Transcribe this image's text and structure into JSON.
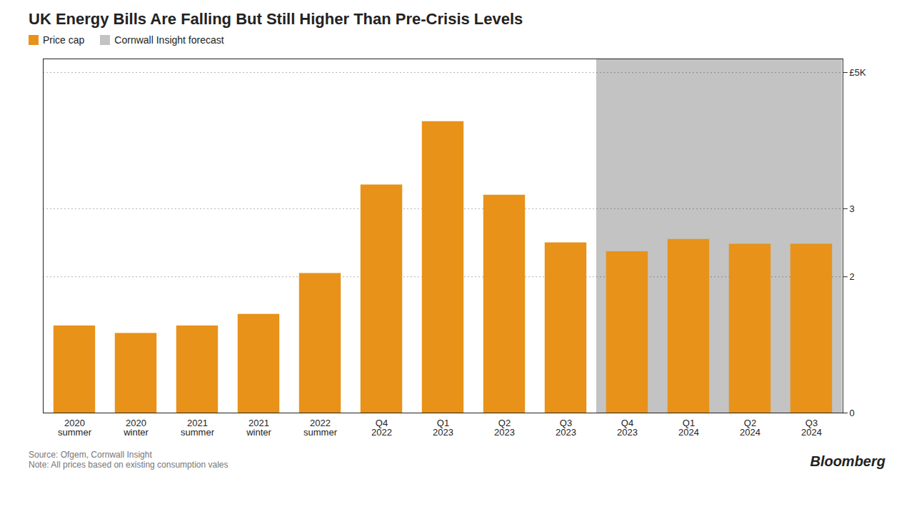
{
  "chart_data": {
    "type": "bar",
    "title": "UK Energy Bills Are Falling But Still Higher Than Pre-Crisis Levels",
    "categories": [
      "2020\nsummer",
      "2020\nwinter",
      "2021\nsummer",
      "2021\nwinter",
      "2022\nsummer",
      "Q4\n2022",
      "Q1\n2023",
      "Q2\n2023",
      "Q3\n2023",
      "Q4\n2023",
      "Q1\n2024",
      "Q2\n2024",
      "Q3\n2024"
    ],
    "series": [
      {
        "name": "Price cap",
        "color": "#E8921A",
        "values": [
          1.28,
          1.17,
          1.28,
          1.45,
          2.05,
          3.35,
          4.28,
          3.2,
          2.5,
          2.37,
          2.55,
          2.48,
          2.48
        ]
      }
    ],
    "forecast": {
      "name": "Cornwall Insight forecast",
      "color": "#383838",
      "values": [
        false,
        false,
        false,
        false,
        false,
        false,
        false,
        false,
        false,
        true,
        true,
        true,
        true
      ]
    },
    "ylim": [
      0,
      5.2
    ],
    "yticks": [
      0,
      2,
      3,
      {
        "value": 5,
        "label": "£5K"
      }
    ],
    "grid": true,
    "legend": "top left",
    "caption": "Source: Ofgem, Cornwall Insight\nNote: All prices based on existing consumption vales",
    "annotations": [
      "Bloomberg"
    ]
  }
}
